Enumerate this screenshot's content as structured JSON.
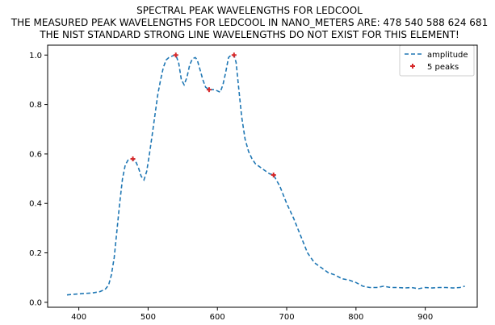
{
  "chart_data": {
    "type": "line",
    "title_lines": [
      "SPECTRAL PEAK WAVELENGTHS FOR LEDCOOL",
      "THE MEASURED PEAK WAVELENGTHS FOR LEDCOOL IN NANO_METERS ARE: 478 540 588 624 681",
      "THE NIST STANDARD STRONG LINE WAVELENGTHS DO NOT EXIST FOR THIS ELEMENT!"
    ],
    "xlabel": "",
    "ylabel": "",
    "xlim": [
      355,
      975
    ],
    "ylim": [
      -0.02,
      1.04
    ],
    "xticks": [
      400,
      500,
      600,
      700,
      800,
      900
    ],
    "yticks": [
      0.0,
      0.2,
      0.4,
      0.6,
      0.8,
      1.0
    ],
    "grid": false,
    "legend": {
      "placement": "top-right",
      "entries": [
        "amplitude",
        "5 peaks"
      ]
    },
    "colors": {
      "line": "#1f77b4",
      "peaks": "#d62728"
    },
    "series": [
      {
        "name": "amplitude",
        "style": "dashed",
        "x": [
          383,
          390,
          400,
          410,
          420,
          430,
          438,
          443,
          447,
          451,
          455,
          459,
          463,
          467,
          471,
          475,
          478,
          482,
          486,
          490,
          494,
          498,
          502,
          506,
          510,
          514,
          518,
          522,
          526,
          530,
          534,
          538,
          540,
          544,
          548,
          552,
          556,
          560,
          564,
          568,
          571,
          575,
          579,
          583,
          588,
          592,
          596,
          600,
          604,
          608,
          612,
          616,
          620,
          624,
          627,
          631,
          635,
          640,
          645,
          650,
          655,
          660,
          665,
          670,
          675,
          681,
          690,
          700,
          710,
          720,
          730,
          740,
          750,
          760,
          770,
          780,
          790,
          800,
          810,
          820,
          830,
          840,
          850,
          860,
          870,
          880,
          890,
          900,
          910,
          920,
          930,
          940,
          950,
          957
        ],
        "y": [
          0.03,
          0.032,
          0.034,
          0.036,
          0.038,
          0.043,
          0.052,
          0.07,
          0.11,
          0.18,
          0.29,
          0.4,
          0.5,
          0.555,
          0.575,
          0.58,
          0.58,
          0.57,
          0.545,
          0.51,
          0.495,
          0.53,
          0.6,
          0.68,
          0.76,
          0.84,
          0.9,
          0.95,
          0.98,
          0.99,
          0.995,
          1.0,
          1.0,
          0.97,
          0.9,
          0.88,
          0.91,
          0.96,
          0.985,
          0.99,
          0.98,
          0.94,
          0.9,
          0.87,
          0.86,
          0.86,
          0.86,
          0.855,
          0.85,
          0.88,
          0.93,
          0.99,
          1.0,
          1.0,
          0.97,
          0.86,
          0.75,
          0.66,
          0.61,
          0.58,
          0.56,
          0.55,
          0.54,
          0.53,
          0.52,
          0.515,
          0.47,
          0.4,
          0.34,
          0.27,
          0.2,
          0.16,
          0.14,
          0.12,
          0.11,
          0.095,
          0.09,
          0.08,
          0.065,
          0.06,
          0.06,
          0.065,
          0.06,
          0.06,
          0.058,
          0.06,
          0.055,
          0.06,
          0.058,
          0.06,
          0.06,
          0.058,
          0.06,
          0.065
        ]
      },
      {
        "name": "5 peaks",
        "style": "markers",
        "x": [
          478,
          540,
          588,
          624,
          681
        ],
        "y": [
          0.58,
          1.0,
          0.86,
          1.0,
          0.515
        ]
      }
    ]
  }
}
